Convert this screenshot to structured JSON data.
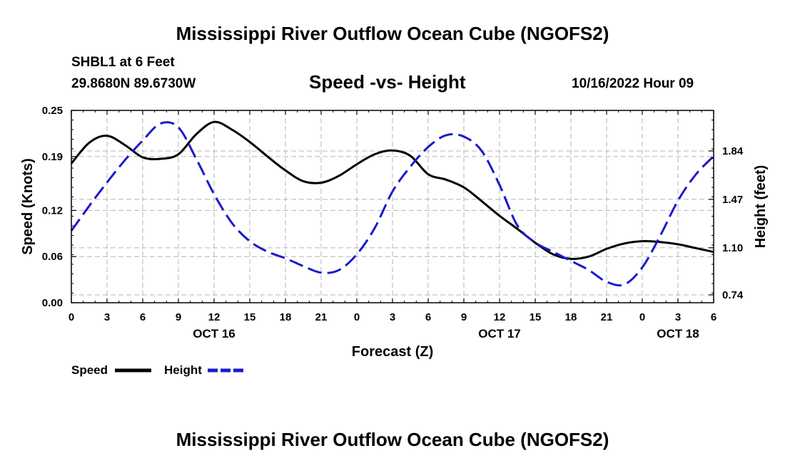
{
  "title": "Mississippi River Outflow Ocean Cube (NGOFS2)",
  "footer_title": "Mississippi River Outflow Ocean Cube (NGOFS2)",
  "station": {
    "name_depth": "SHBL1 at 6 Feet",
    "coords": "29.8680N  89.6730W"
  },
  "subtitle": "Speed -vs- Height",
  "datetime": "10/16/2022 Hour 09",
  "colors": {
    "speed": "#000000",
    "height": "#1a1acc",
    "grid": "#b4b4b4"
  },
  "chart_data": {
    "type": "line",
    "title": "Speed -vs- Height",
    "xlabel": "Forecast (Z)",
    "ylabel": "Speed (Knots)",
    "y2label": "Height (feet)",
    "x_range_hours": [
      0,
      54
    ],
    "x_tick_hours": [
      0,
      3,
      6,
      9,
      12,
      15,
      18,
      21,
      24,
      27,
      30,
      33,
      36,
      39,
      42,
      45,
      48,
      51,
      54
    ],
    "x_tick_labels": [
      "0",
      "3",
      "6",
      "9",
      "12",
      "15",
      "18",
      "21",
      "0",
      "3",
      "6",
      "9",
      "12",
      "15",
      "18",
      "21",
      "0",
      "3",
      "6"
    ],
    "date_labels": [
      {
        "label": "OCT 16",
        "hour": 12
      },
      {
        "label": "OCT 17",
        "hour": 36
      },
      {
        "label": "OCT 18",
        "hour": 51
      }
    ],
    "ylim": [
      0,
      0.25
    ],
    "y_ticks": [
      0.0,
      0.06,
      0.12,
      0.19,
      0.25
    ],
    "y_tick_labels": [
      "0.00",
      "0.06",
      "0.12",
      "0.19",
      "0.25"
    ],
    "y2lim": [
      0.68,
      2.15
    ],
    "y2_ticks": [
      0.74,
      1.1,
      1.47,
      1.84
    ],
    "y2_tick_labels": [
      "0.74",
      "1.10",
      "1.47",
      "1.84"
    ],
    "grid": true,
    "series": [
      {
        "name": "Speed",
        "axis": "left",
        "style": "solid",
        "x": [
          0,
          1.5,
          3,
          4.5,
          6,
          7.5,
          9,
          10.5,
          12,
          13.5,
          15,
          16.5,
          18,
          19.5,
          21,
          22.5,
          24,
          25.5,
          27,
          28.5,
          30,
          31.5,
          33,
          34.5,
          36,
          37.5,
          39,
          40.5,
          42,
          43.5,
          45,
          46.5,
          48,
          49.5,
          51,
          52.5,
          54
        ],
        "values": [
          0.181,
          0.208,
          0.217,
          0.205,
          0.189,
          0.187,
          0.193,
          0.219,
          0.235,
          0.225,
          0.209,
          0.19,
          0.172,
          0.158,
          0.156,
          0.165,
          0.18,
          0.193,
          0.198,
          0.191,
          0.167,
          0.16,
          0.15,
          0.132,
          0.113,
          0.096,
          0.078,
          0.063,
          0.057,
          0.06,
          0.07,
          0.077,
          0.08,
          0.079,
          0.076,
          0.071,
          0.066
        ]
      },
      {
        "name": "Height",
        "axis": "right",
        "style": "dashed",
        "x": [
          0,
          1.5,
          3,
          4.5,
          6,
          7.5,
          9,
          10.5,
          12,
          13.5,
          15,
          16.5,
          18,
          19.5,
          21,
          22.5,
          24,
          25.5,
          27,
          28.5,
          30,
          31.5,
          33,
          34.5,
          36,
          37.5,
          39,
          40.5,
          42,
          43.5,
          45,
          46.5,
          48,
          49.5,
          51,
          52.5,
          54
        ],
        "values": [
          1.23,
          1.42,
          1.6,
          1.77,
          1.92,
          2.05,
          2.02,
          1.78,
          1.51,
          1.29,
          1.15,
          1.07,
          1.02,
          0.96,
          0.91,
          0.93,
          1.05,
          1.25,
          1.53,
          1.72,
          1.87,
          1.96,
          1.95,
          1.84,
          1.58,
          1.27,
          1.14,
          1.07,
          1.0,
          0.93,
          0.84,
          0.82,
          0.95,
          1.19,
          1.46,
          1.66,
          1.8
        ]
      }
    ]
  }
}
